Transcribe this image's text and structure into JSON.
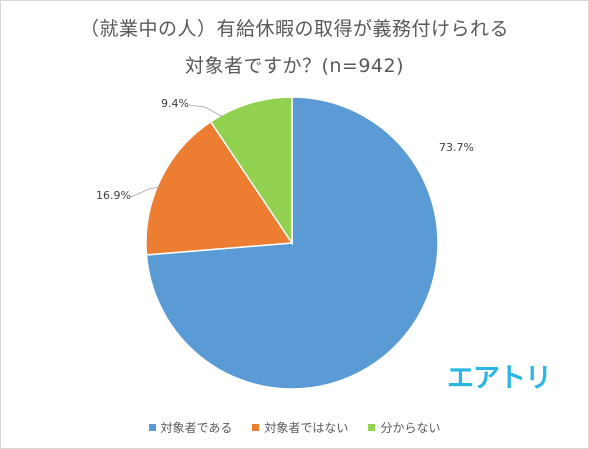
{
  "chart_data": {
    "type": "pie",
    "title_lines": [
      "（就業中の人）有給休暇の取得が義務付けられる",
      "対象者ですか？(n=942)"
    ],
    "categories": [
      "対象者である",
      "対象者ではない",
      "分からない"
    ],
    "values": [
      73.7,
      16.9,
      9.4
    ],
    "value_labels": [
      "73.7%",
      "16.9%",
      "9.4%"
    ],
    "colors": [
      "#5b9bd5",
      "#ed7d31",
      "#92d050"
    ],
    "legend_position": "bottom",
    "start_angle": "12 o'clock",
    "direction": "clockwise"
  },
  "logo": {
    "text": "エアトリ",
    "color": "#29b6e2"
  }
}
